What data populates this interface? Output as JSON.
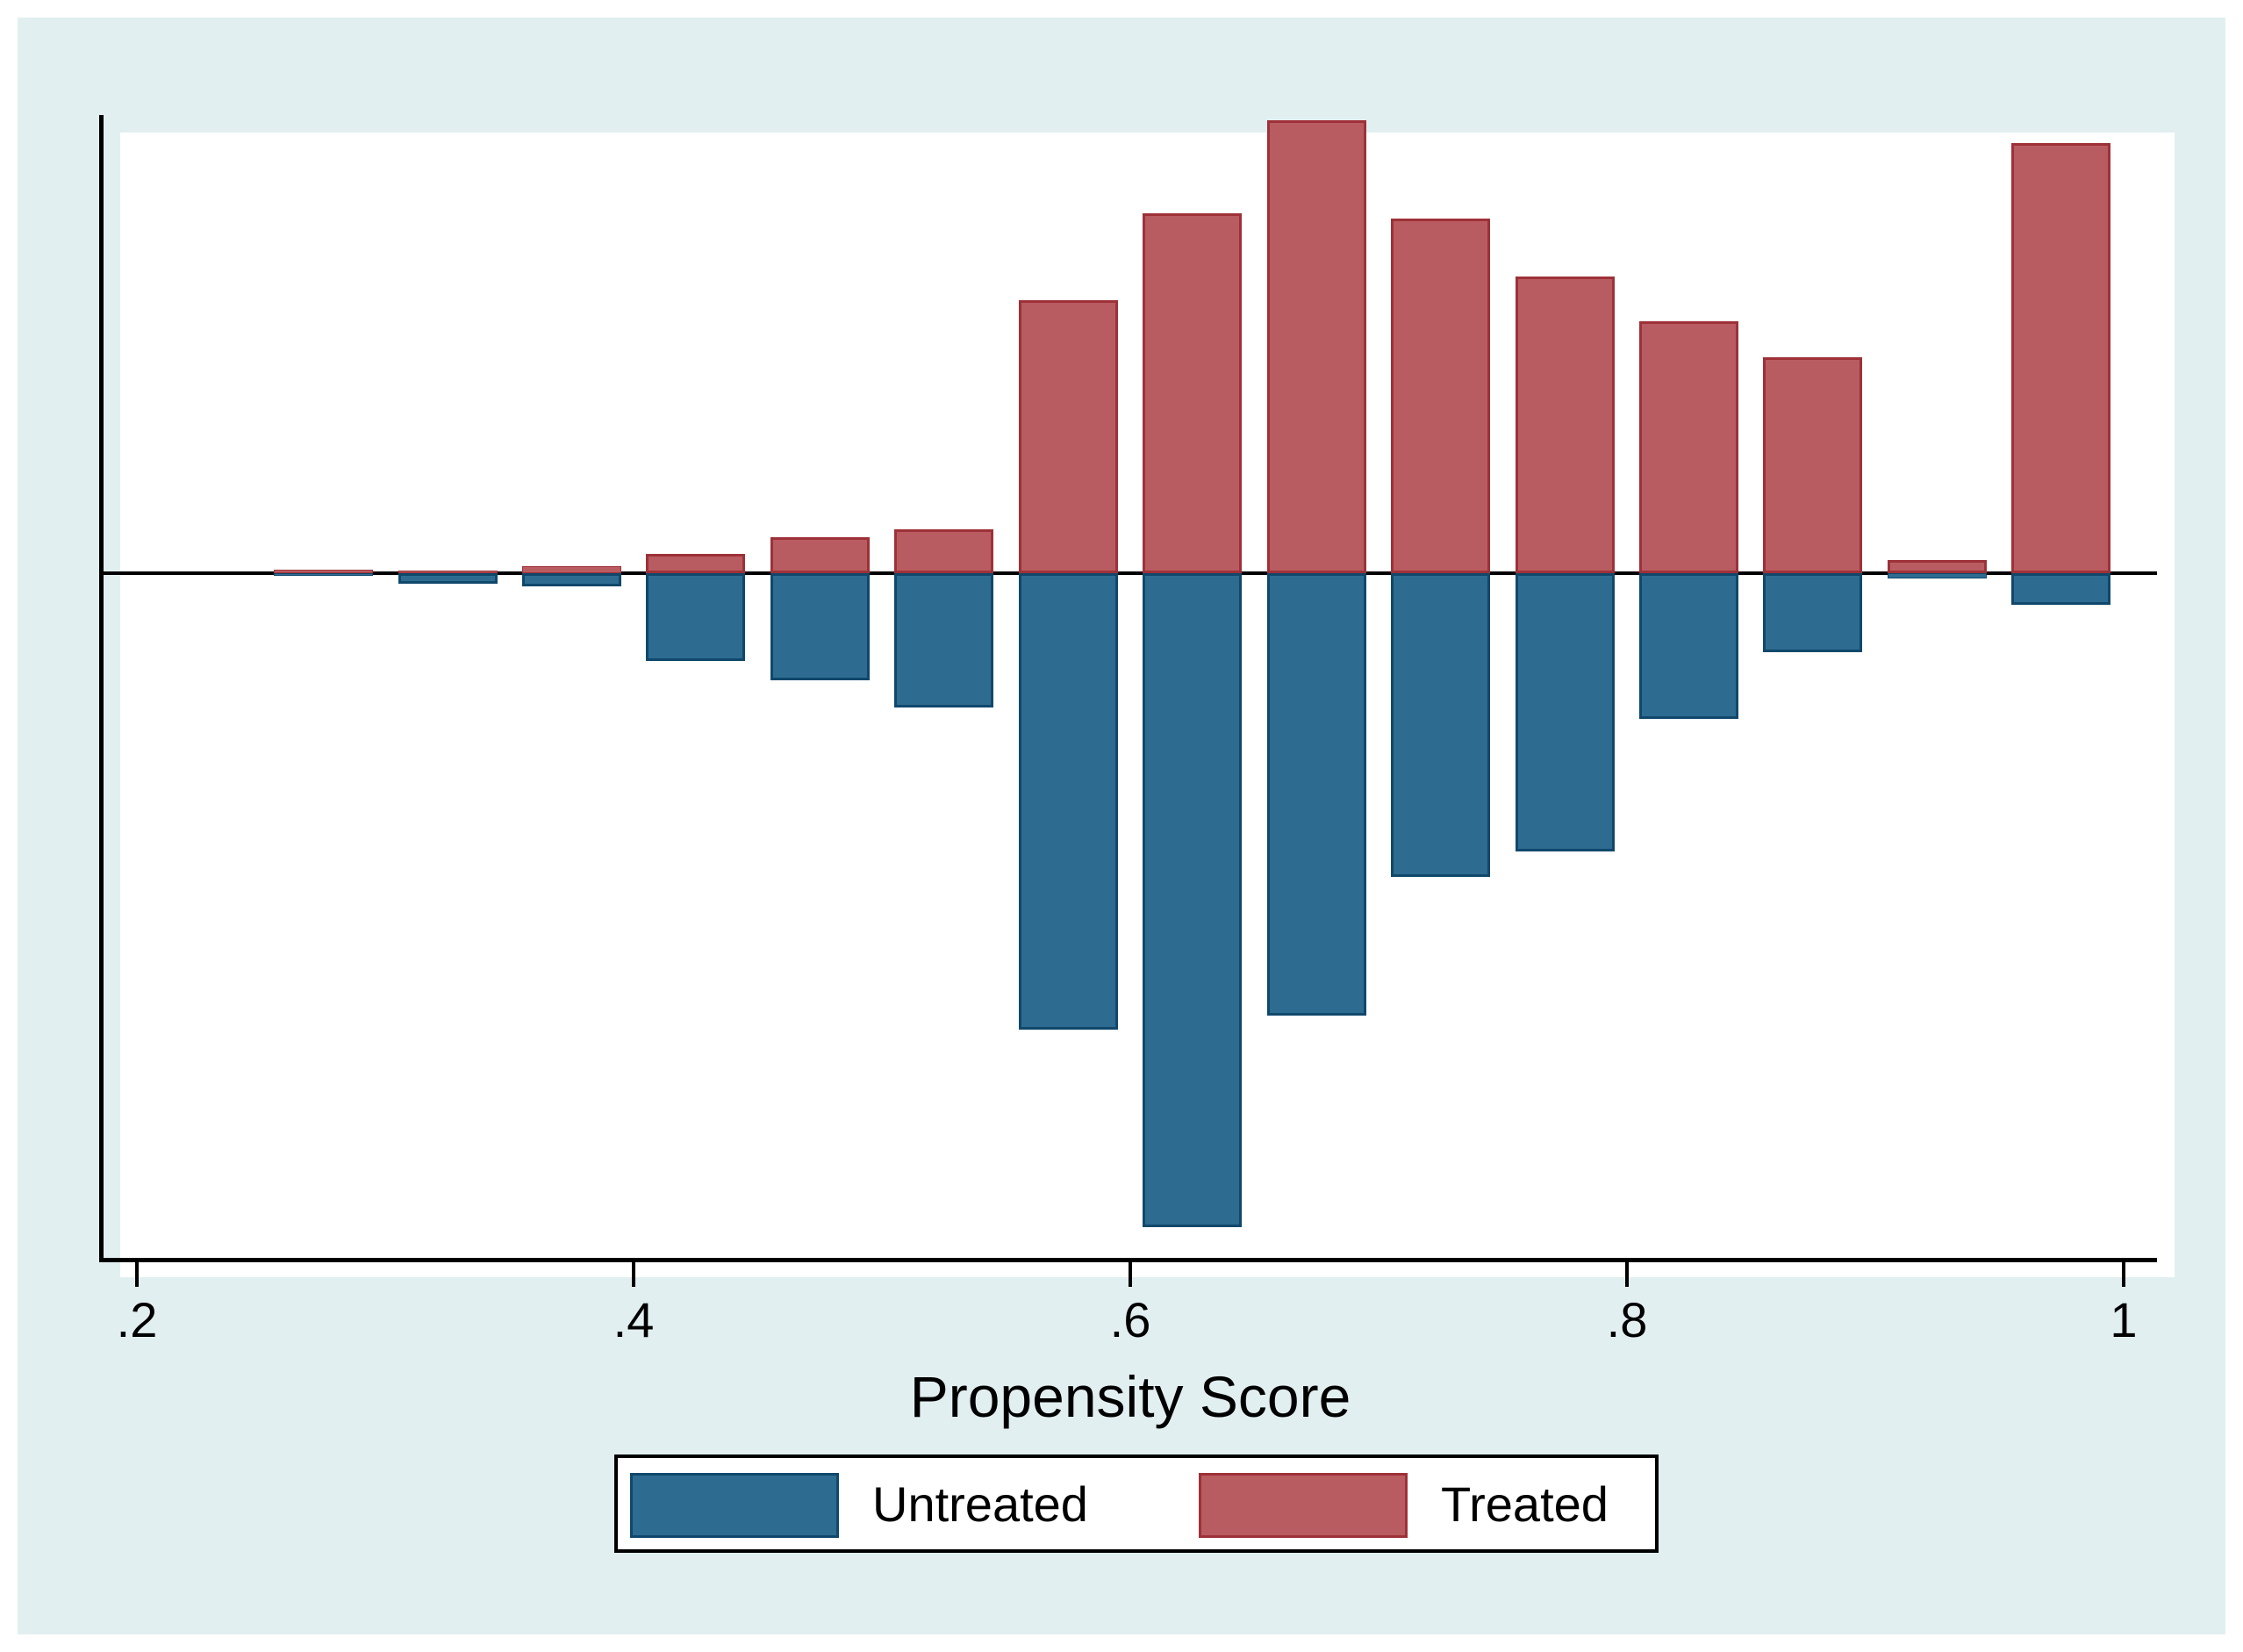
{
  "figure": {
    "background_color": "#e2eff1",
    "plot_background_color": "#ffffff",
    "axis_color": "#000000"
  },
  "chart_data": {
    "type": "bar",
    "subtype": "diverging-histogram",
    "title": "",
    "xlabel": "Propensity Score",
    "ylabel": "",
    "x_tick_labels": [
      ".2",
      ".4",
      ".6",
      ".8",
      "1"
    ],
    "x_tick_values": [
      0.2,
      0.4,
      0.6,
      0.8,
      1.0
    ],
    "x_range": [
      0.2,
      1.0
    ],
    "bin_width": 0.05,
    "bar_visual_width_fraction": 0.8,
    "grid": false,
    "y_axis_labels_visible": false,
    "units": "density",
    "bin_centers": [
      0.275,
      0.325,
      0.375,
      0.425,
      0.475,
      0.525,
      0.575,
      0.625,
      0.675,
      0.725,
      0.775,
      0.825,
      0.875,
      0.925,
      0.975
    ],
    "series": [
      {
        "name": "Treated",
        "direction": "up",
        "fill_color": "#b95c61",
        "border_color": "#9e3138",
        "values": [
          0.025,
          0.019,
          0.051,
          0.14,
          0.261,
          0.318,
          1.978,
          2.607,
          3.281,
          2.569,
          2.149,
          1.825,
          1.564,
          0.095,
          3.116
        ]
      },
      {
        "name": "Untreated",
        "direction": "down",
        "fill_color": "#2d6c90",
        "border_color": "#10486c",
        "values": [
          0.022,
          0.076,
          0.095,
          0.636,
          0.776,
          0.973,
          3.307,
          4.738,
          3.205,
          2.2,
          2.016,
          1.056,
          0.572,
          0.038,
          0.229
        ]
      }
    ],
    "legend_position": "bottom-center"
  },
  "legend": {
    "items": [
      {
        "label": "Untreated",
        "color": "#2d6c90"
      },
      {
        "label": "Treated",
        "color": "#b95c61"
      }
    ]
  }
}
